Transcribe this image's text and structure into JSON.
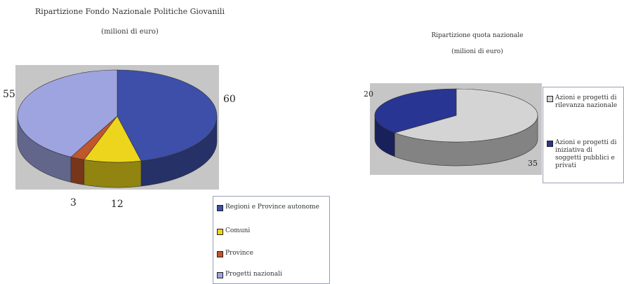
{
  "chart_data": [
    {
      "type": "pie",
      "title": "Ripartizione Fondo Nazionale Politiche Giovanili",
      "subtitle": "(milioni di euro)",
      "categories": [
        "Regioni e Province autonome",
        "Comuni",
        "Province",
        "Progetti nazionali"
      ],
      "values": [
        60,
        12,
        3,
        55
      ],
      "colors": [
        "#3d4fa8",
        "#ecd51c",
        "#c0562c",
        "#9ea4e0"
      ],
      "legend": "bottom-right"
    },
    {
      "type": "pie",
      "title": "Ripartizione quota nazionale",
      "subtitle": "(milioni di euro)",
      "categories": [
        "Azioni e progetti di rilevanza nazionale",
        "Azioni e progetti di iniziativa di soggetti pubblici e privati"
      ],
      "values": [
        35,
        20
      ],
      "colors": [
        "#d4d4d4",
        "#283593"
      ],
      "legend": "right"
    }
  ]
}
